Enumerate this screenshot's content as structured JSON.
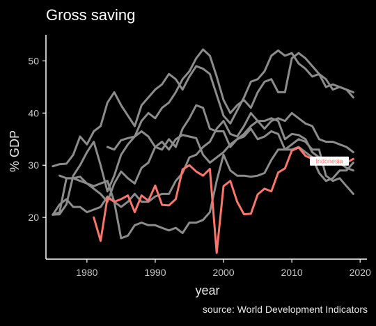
{
  "chart_data": {
    "type": "line",
    "title": "Gross saving",
    "xlabel": "year",
    "ylabel": "% GDP",
    "caption": "source: World Development Indicators",
    "xlim": [
      1974,
      2021
    ],
    "ylim": [
      12,
      55
    ],
    "xticks": [
      1980,
      1990,
      2000,
      2010,
      2020
    ],
    "yticks": [
      20,
      30,
      40,
      50
    ],
    "grid": false,
    "highlight_color": "#f8766d",
    "context_color": "#8c8c8c",
    "series": [
      {
        "name": "Indonesia",
        "highlight": true,
        "x": [
          1981,
          1982,
          1983,
          1984,
          1985,
          1986,
          1987,
          1988,
          1989,
          1990,
          1991,
          1992,
          1993,
          1994,
          1995,
          1996,
          1997,
          1998,
          1999,
          2000,
          2001,
          2002,
          2003,
          2004,
          2005,
          2006,
          2007,
          2008,
          2009,
          2010,
          2011,
          2012,
          2013,
          2014,
          2015,
          2016,
          2017,
          2018,
          2019
        ],
        "y": [
          20.0,
          15.5,
          23.8,
          23.0,
          23.5,
          24.2,
          21.0,
          24.2,
          23.2,
          26.1,
          22.4,
          22.3,
          23.5,
          29.2,
          30.0,
          28.8,
          28.0,
          29.3,
          13.2,
          26.0,
          27.0,
          23.0,
          20.6,
          20.7,
          24.4,
          25.5,
          25.0,
          28.6,
          29.4,
          32.8,
          33.4,
          31.8,
          31.2,
          31.0,
          31.0,
          30.7,
          30.8,
          30.5,
          31.2
        ]
      },
      {
        "highlight": false,
        "x": [
          1975,
          1976,
          1977,
          1978,
          1979,
          1980,
          1981,
          1982,
          1983,
          1984,
          1985,
          1986,
          1987,
          1988,
          1989,
          1990,
          1991,
          1992,
          1993,
          1994,
          1995,
          1996,
          1997,
          1998,
          1999,
          2000,
          2001,
          2002,
          2003,
          2004,
          2005,
          2006,
          2007,
          2008,
          2009,
          2010,
          2011,
          2012,
          2013,
          2014,
          2015,
          2016,
          2017,
          2018,
          2019
        ],
        "y": [
          20.5,
          20.6,
          22.5,
          28.0,
          30.0,
          32.5,
          34.5,
          30.0,
          25.0,
          28.0,
          32.0,
          34.0,
          35.5,
          36.5,
          35.5,
          33.5,
          34.5,
          33.0,
          35.0,
          35.8,
          35.5,
          35.2,
          32.0,
          30.5,
          31.5,
          32.5,
          34.0,
          35.0,
          36.0,
          37.5,
          38.5,
          38.5,
          39.0,
          38.5,
          35.0,
          36.0,
          35.8,
          35.0,
          32.5,
          31.5,
          30.5,
          31.0,
          30.5,
          29.5,
          29.0
        ]
      },
      {
        "highlight": false,
        "x": [
          1975,
          1976,
          1977,
          1978,
          1979,
          1980,
          1981,
          1982,
          1983,
          1984,
          1985,
          1986,
          1987,
          1988,
          1989,
          1990,
          1991,
          1992,
          1993,
          1994,
          1995,
          1996,
          1997,
          1998,
          1999,
          2000,
          2001,
          2002,
          2003,
          2004,
          2005,
          2006,
          2007,
          2008,
          2009,
          2010,
          2011,
          2012,
          2013,
          2014,
          2015,
          2016,
          2017,
          2018,
          2019
        ],
        "y": [
          29.8,
          30.2,
          30.3,
          32.0,
          35.5,
          34.0,
          36.5,
          37.5,
          42.0,
          44.0,
          41.5,
          39.5,
          37.5,
          41.5,
          43.0,
          44.5,
          45.5,
          47.5,
          46.5,
          44.5,
          47.0,
          49.0,
          48.5,
          47.5,
          43.5,
          39.5,
          38.0,
          40.5,
          43.0,
          46.0,
          46.5,
          48.0,
          51.0,
          52.0,
          51.0,
          51.5,
          49.5,
          48.5,
          47.0,
          47.5,
          45.0,
          45.5,
          45.0,
          44.5,
          43.0
        ]
      },
      {
        "highlight": false,
        "x": [
          1983,
          1984,
          1985,
          1986,
          1987,
          1988,
          1989,
          1990,
          1991,
          1992,
          1993,
          1994,
          1995,
          1996,
          1997,
          1998,
          1999,
          2000,
          2001,
          2002,
          2003,
          2004,
          2005,
          2006,
          2007,
          2008,
          2009,
          2010,
          2011,
          2012,
          2013,
          2014,
          2015,
          2016,
          2017,
          2018,
          2019
        ],
        "y": [
          33.5,
          33.0,
          34.8,
          35.2,
          35.5,
          38.5,
          40.0,
          39.0,
          41.0,
          42.0,
          44.0,
          46.5,
          48.0,
          50.5,
          52.2,
          51.0,
          47.0,
          42.5,
          40.0,
          41.5,
          42.5,
          41.0,
          44.0,
          46.0,
          46.5,
          44.0,
          44.0,
          50.5,
          51.5,
          50.5,
          49.0,
          47.5,
          46.5,
          44.5,
          45.0,
          44.5,
          44.0
        ]
      },
      {
        "highlight": false,
        "x": [
          1975,
          1976,
          1977,
          1978,
          1979,
          1980,
          1981,
          1982,
          1983,
          1984,
          1985,
          1986,
          1987,
          1988,
          1989,
          1990,
          1991,
          1992,
          1993,
          1994,
          1995,
          1996,
          1997,
          1998,
          1999,
          2000,
          2001,
          2002,
          2003,
          2004,
          2005,
          2006,
          2007,
          2008,
          2009,
          2010,
          2011,
          2012,
          2013,
          2014,
          2015,
          2016,
          2017,
          2018,
          2019
        ],
        "y": [
          20.5,
          21.0,
          27.5,
          27.5,
          27.8,
          26.5,
          25.5,
          24.5,
          23.0,
          26.5,
          28.8,
          27.5,
          26.5,
          29.5,
          30.5,
          33.5,
          33.0,
          35.0,
          33.5,
          37.0,
          39.0,
          41.5,
          41.0,
          37.0,
          36.5,
          36.5,
          33.5,
          35.0,
          35.5,
          37.0,
          35.0,
          35.5,
          36.5,
          36.0,
          33.0,
          33.0,
          33.5,
          32.5,
          31.5,
          28.5,
          27.0,
          27.5,
          29.0,
          29.0,
          30.5
        ]
      },
      {
        "highlight": false,
        "x": [
          1976,
          1977,
          1978,
          1979,
          1980,
          1981,
          1982,
          1983,
          1984,
          1985,
          1986,
          1987,
          1988,
          1989,
          1990,
          1991,
          1992,
          1993,
          1994,
          1995,
          1996,
          1997,
          1998,
          1999,
          2000,
          2001,
          2002,
          2003,
          2004,
          2005,
          2006,
          2007,
          2008,
          2009,
          2010,
          2011,
          2012,
          2013,
          2014,
          2015,
          2016,
          2017,
          2018,
          2019
        ],
        "y": [
          28.0,
          27.5,
          27.5,
          27.0,
          26.5,
          26.0,
          26.5,
          27.0,
          23.0,
          16.0,
          16.5,
          18.5,
          19.0,
          18.5,
          18.5,
          18.0,
          17.5,
          18.0,
          17.0,
          19.0,
          19.0,
          19.5,
          21.0,
          27.0,
          32.0,
          29.0,
          28.0,
          28.0,
          27.8,
          28.0,
          28.5,
          31.0,
          33.0,
          33.0,
          34.0,
          35.0,
          34.5,
          33.0,
          33.0,
          28.0,
          27.0,
          27.5,
          26.0,
          24.5
        ]
      },
      {
        "highlight": false,
        "x": [
          1975,
          1976,
          1977,
          1978,
          1979,
          1980,
          1981,
          1982,
          1983,
          1984,
          1985,
          1986,
          1987,
          1988,
          1989,
          1990,
          1991,
          1992,
          1993,
          1994,
          1995,
          1996,
          1997,
          1998,
          1999,
          2000,
          2001,
          2002,
          2003,
          2004,
          2005,
          2006,
          2007,
          2008,
          2009,
          2010,
          2011,
          2012,
          2013,
          2014,
          2015,
          2016,
          2017,
          2018,
          2019
        ],
        "y": [
          20.5,
          22.5,
          23.5,
          22.0,
          22.0,
          21.0,
          21.5,
          22.0,
          24.0,
          23.0,
          22.0,
          23.0,
          24.5,
          23.0,
          23.0,
          24.0,
          24.5,
          24.5,
          27.0,
          28.5,
          31.5,
          32.0,
          33.5,
          34.5,
          37.0,
          38.5,
          36.0,
          35.5,
          37.5,
          40.0,
          38.5,
          37.0,
          38.5,
          39.0,
          38.5,
          40.0,
          39.0,
          38.0,
          37.5,
          35.0,
          34.5,
          34.5,
          34.0,
          33.5,
          32.5
        ]
      }
    ]
  }
}
